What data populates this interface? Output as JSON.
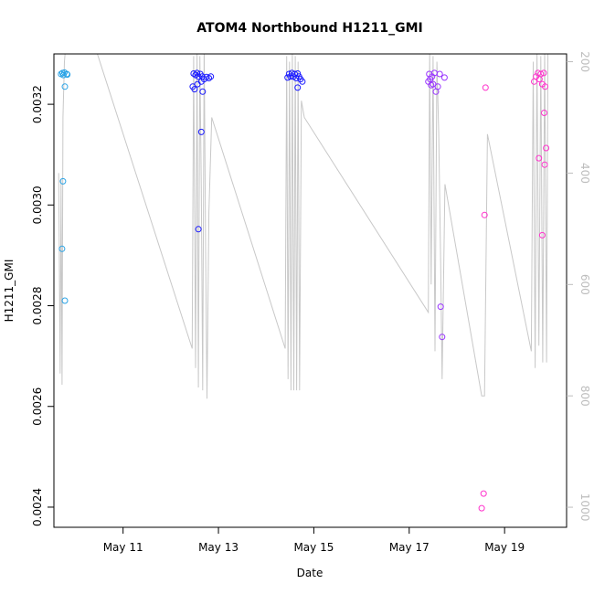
{
  "chart_data": {
    "type": "scatter",
    "title": "ATOM4 Northbound H1211_GMI",
    "xlabel": "Date",
    "ylabel": "H1211_GMI",
    "xlim": [
      9.55,
      20.3
    ],
    "ylim": [
      0.00236,
      0.0033
    ],
    "x_ticks": [
      {
        "value": 11,
        "label": "May 11"
      },
      {
        "value": 13,
        "label": "May 13"
      },
      {
        "value": 15,
        "label": "May 15"
      },
      {
        "value": 17,
        "label": "May 17"
      },
      {
        "value": 19,
        "label": "May 19"
      }
    ],
    "y_ticks": [
      {
        "value": 0.0024,
        "label": "0.0024"
      },
      {
        "value": 0.0026,
        "label": "0.0026"
      },
      {
        "value": 0.0028,
        "label": "0.0028"
      },
      {
        "value": 0.003,
        "label": "0.0030"
      },
      {
        "value": 0.0032,
        "label": "0.0032"
      }
    ],
    "secondary_axis": {
      "label": "",
      "range_top": 186,
      "range_bottom": 1036,
      "ticks": [
        {
          "value": 200,
          "label": "200"
        },
        {
          "value": 400,
          "label": "400"
        },
        {
          "value": 600,
          "label": "600"
        },
        {
          "value": 800,
          "label": "800"
        },
        {
          "value": 1000,
          "label": "1000"
        }
      ],
      "color": "#bdbdbd"
    },
    "colors": {
      "trace": "#c8c8c8",
      "early": "#29a3e6",
      "mid": "#1a1aff",
      "late": "#9933ff",
      "end": "#ff33cc"
    },
    "points": [
      {
        "x": 9.7,
        "y": 0.00326,
        "group": "early"
      },
      {
        "x": 9.73,
        "y": 0.003262,
        "group": "early"
      },
      {
        "x": 9.75,
        "y": 0.003258,
        "group": "early"
      },
      {
        "x": 9.77,
        "y": 0.003263,
        "group": "early"
      },
      {
        "x": 9.78,
        "y": 0.003235,
        "group": "early"
      },
      {
        "x": 9.82,
        "y": 0.00326,
        "group": "early"
      },
      {
        "x": 9.83,
        "y": 0.003259,
        "group": "early"
      },
      {
        "x": 9.74,
        "y": 0.003047,
        "group": "early"
      },
      {
        "x": 9.72,
        "y": 0.002913,
        "group": "early"
      },
      {
        "x": 9.78,
        "y": 0.00281,
        "group": "early"
      },
      {
        "x": 12.48,
        "y": 0.003261,
        "group": "mid"
      },
      {
        "x": 12.52,
        "y": 0.003258,
        "group": "mid"
      },
      {
        "x": 12.55,
        "y": 0.003262,
        "group": "mid"
      },
      {
        "x": 12.58,
        "y": 0.003255,
        "group": "mid"
      },
      {
        "x": 12.62,
        "y": 0.00326,
        "group": "mid"
      },
      {
        "x": 12.66,
        "y": 0.003255,
        "group": "mid"
      },
      {
        "x": 12.7,
        "y": 0.00325,
        "group": "mid"
      },
      {
        "x": 12.75,
        "y": 0.003254,
        "group": "mid"
      },
      {
        "x": 12.8,
        "y": 0.003252,
        "group": "mid"
      },
      {
        "x": 12.84,
        "y": 0.003255,
        "group": "mid"
      },
      {
        "x": 12.46,
        "y": 0.003235,
        "group": "mid"
      },
      {
        "x": 12.5,
        "y": 0.00323,
        "group": "mid"
      },
      {
        "x": 12.56,
        "y": 0.00324,
        "group": "mid"
      },
      {
        "x": 12.64,
        "y": 0.003245,
        "group": "mid"
      },
      {
        "x": 12.67,
        "y": 0.003225,
        "group": "mid"
      },
      {
        "x": 12.64,
        "y": 0.003145,
        "group": "mid"
      },
      {
        "x": 12.58,
        "y": 0.002952,
        "group": "mid"
      },
      {
        "x": 14.45,
        "y": 0.003253,
        "group": "mid"
      },
      {
        "x": 14.48,
        "y": 0.00326,
        "group": "mid"
      },
      {
        "x": 14.51,
        "y": 0.003255,
        "group": "mid"
      },
      {
        "x": 14.54,
        "y": 0.003262,
        "group": "mid"
      },
      {
        "x": 14.57,
        "y": 0.003255,
        "group": "mid"
      },
      {
        "x": 14.6,
        "y": 0.00326,
        "group": "mid"
      },
      {
        "x": 14.63,
        "y": 0.003252,
        "group": "mid"
      },
      {
        "x": 14.66,
        "y": 0.003261,
        "group": "mid"
      },
      {
        "x": 14.69,
        "y": 0.003255,
        "group": "mid"
      },
      {
        "x": 14.72,
        "y": 0.00325,
        "group": "mid"
      },
      {
        "x": 14.76,
        "y": 0.003245,
        "group": "mid"
      },
      {
        "x": 14.66,
        "y": 0.003233,
        "group": "mid"
      },
      {
        "x": 17.4,
        "y": 0.003245,
        "group": "late"
      },
      {
        "x": 17.42,
        "y": 0.00326,
        "group": "late"
      },
      {
        "x": 17.44,
        "y": 0.00325,
        "group": "late"
      },
      {
        "x": 17.46,
        "y": 0.003238,
        "group": "late"
      },
      {
        "x": 17.48,
        "y": 0.003255,
        "group": "late"
      },
      {
        "x": 17.5,
        "y": 0.00324,
        "group": "late"
      },
      {
        "x": 17.53,
        "y": 0.003262,
        "group": "late"
      },
      {
        "x": 17.56,
        "y": 0.003225,
        "group": "late"
      },
      {
        "x": 17.6,
        "y": 0.003235,
        "group": "late"
      },
      {
        "x": 17.64,
        "y": 0.00326,
        "group": "late"
      },
      {
        "x": 17.74,
        "y": 0.003253,
        "group": "late"
      },
      {
        "x": 17.66,
        "y": 0.002798,
        "group": "late"
      },
      {
        "x": 17.69,
        "y": 0.002738,
        "group": "late"
      },
      {
        "x": 18.6,
        "y": 0.003233,
        "group": "end"
      },
      {
        "x": 18.58,
        "y": 0.00298,
        "group": "end"
      },
      {
        "x": 18.56,
        "y": 0.002427,
        "group": "end"
      },
      {
        "x": 18.52,
        "y": 0.002398,
        "group": "end"
      },
      {
        "x": 19.62,
        "y": 0.003245,
        "group": "end"
      },
      {
        "x": 19.66,
        "y": 0.003255,
        "group": "end"
      },
      {
        "x": 19.7,
        "y": 0.003262,
        "group": "end"
      },
      {
        "x": 19.73,
        "y": 0.00325,
        "group": "end"
      },
      {
        "x": 19.76,
        "y": 0.00326,
        "group": "end"
      },
      {
        "x": 19.79,
        "y": 0.00324,
        "group": "end"
      },
      {
        "x": 19.82,
        "y": 0.003262,
        "group": "end"
      },
      {
        "x": 19.85,
        "y": 0.003235,
        "group": "end"
      },
      {
        "x": 19.83,
        "y": 0.003183,
        "group": "end"
      },
      {
        "x": 19.87,
        "y": 0.003113,
        "group": "end"
      },
      {
        "x": 19.72,
        "y": 0.003093,
        "group": "end"
      },
      {
        "x": 19.84,
        "y": 0.00308,
        "group": "end"
      },
      {
        "x": 19.79,
        "y": 0.00294,
        "group": "end"
      }
    ],
    "secondary_series": [
      [
        9.65,
        400
      ],
      [
        9.68,
        760
      ],
      [
        9.7,
        410
      ],
      [
        9.72,
        780
      ],
      [
        9.74,
        300
      ],
      [
        9.77,
        200
      ],
      [
        9.8,
        170
      ],
      [
        9.83,
        180
      ],
      [
        10.4,
        170
      ],
      [
        12.45,
        715
      ],
      [
        12.48,
        190
      ],
      [
        12.52,
        750
      ],
      [
        12.55,
        180
      ],
      [
        12.58,
        785
      ],
      [
        12.61,
        190
      ],
      [
        12.64,
        430
      ],
      [
        12.67,
        790
      ],
      [
        12.7,
        170
      ],
      [
        12.73,
        540
      ],
      [
        12.76,
        805
      ],
      [
        12.8,
        470
      ],
      [
        12.86,
        300
      ],
      [
        14.4,
        715
      ],
      [
        14.43,
        190
      ],
      [
        14.46,
        770
      ],
      [
        14.49,
        200
      ],
      [
        14.52,
        790
      ],
      [
        14.55,
        180
      ],
      [
        14.58,
        790
      ],
      [
        14.61,
        190
      ],
      [
        14.64,
        790
      ],
      [
        14.67,
        200
      ],
      [
        14.7,
        790
      ],
      [
        14.74,
        270
      ],
      [
        14.8,
        300
      ],
      [
        17.4,
        650
      ],
      [
        17.43,
        180
      ],
      [
        17.46,
        600
      ],
      [
        17.5,
        190
      ],
      [
        17.54,
        720
      ],
      [
        17.58,
        200
      ],
      [
        17.62,
        330
      ],
      [
        17.66,
        560
      ],
      [
        17.69,
        770
      ],
      [
        17.75,
        420
      ],
      [
        18.52,
        800
      ],
      [
        18.58,
        800
      ],
      [
        18.64,
        330
      ],
      [
        19.56,
        720
      ],
      [
        19.6,
        200
      ],
      [
        19.64,
        750
      ],
      [
        19.68,
        180
      ],
      [
        19.72,
        710
      ],
      [
        19.76,
        190
      ],
      [
        19.8,
        740
      ],
      [
        19.84,
        180
      ],
      [
        19.88,
        740
      ],
      [
        19.91,
        180
      ]
    ]
  }
}
